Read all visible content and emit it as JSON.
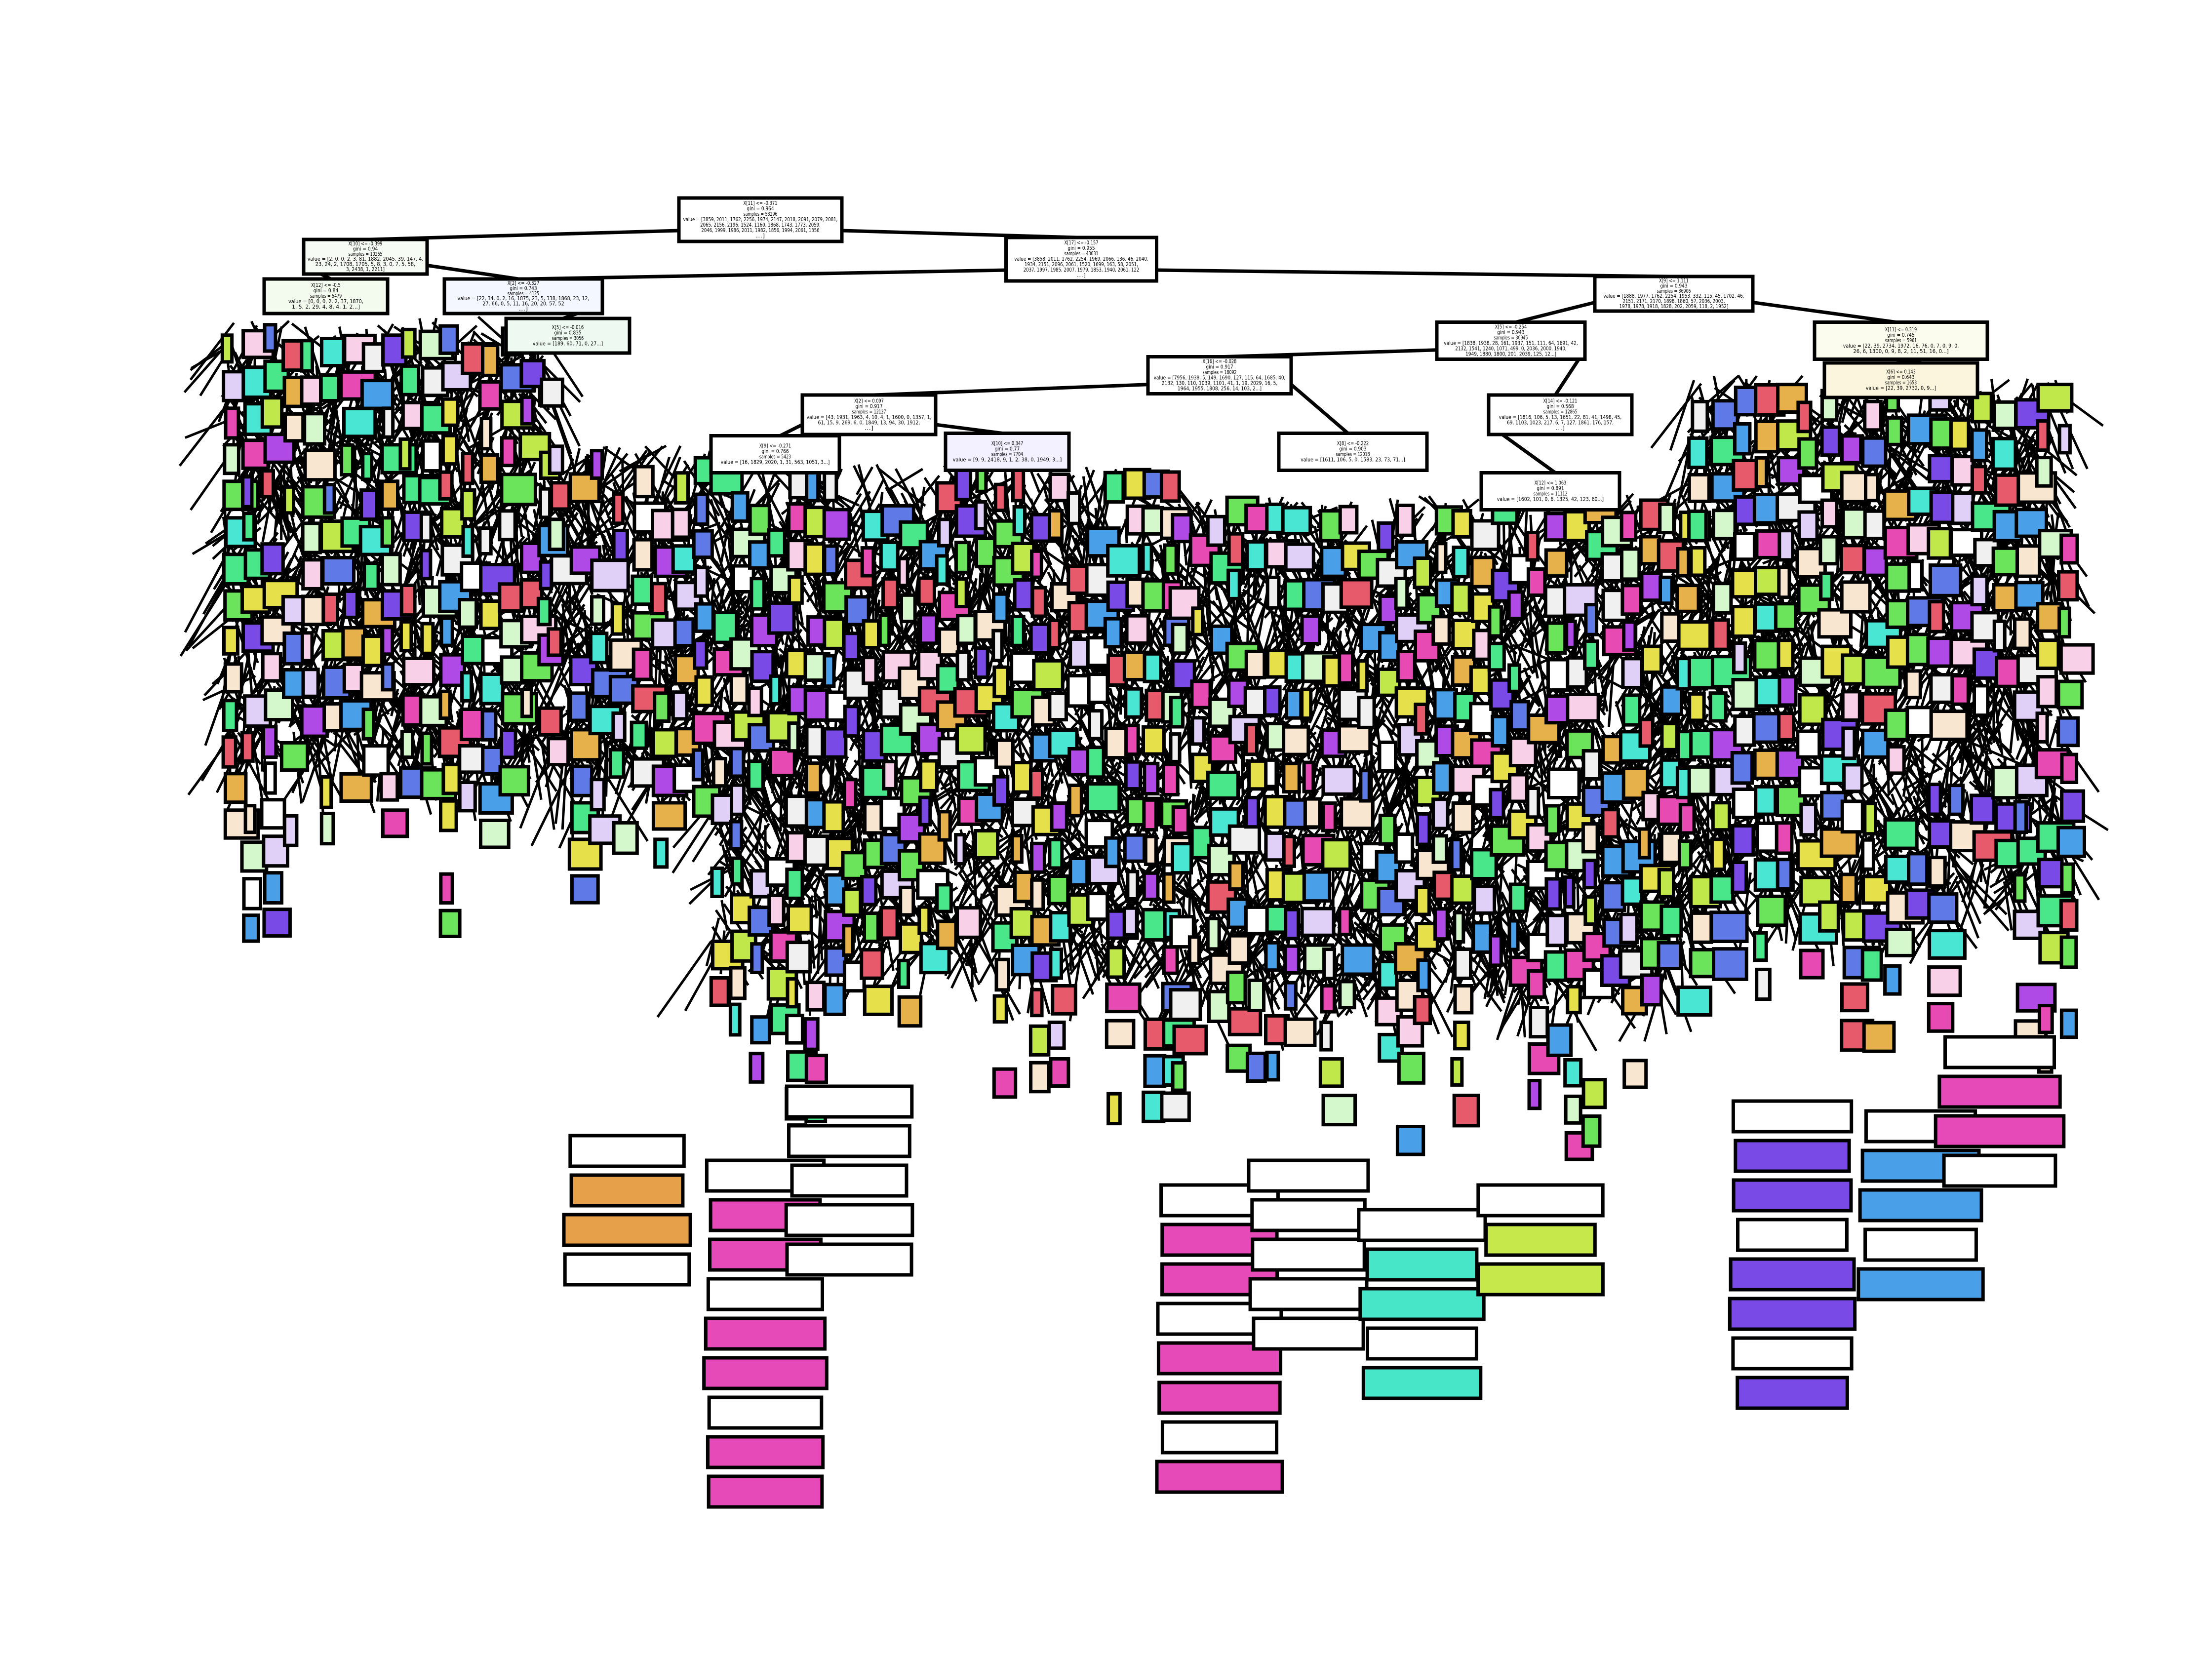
{
  "diagram": {
    "type": "decision-tree",
    "palette": [
      "#6be35a",
      "#d4f7cc",
      "#4aa0e8",
      "#5f7ae6",
      "#e84ab3",
      "#b04ae6",
      "#7a4ae6",
      "#e6b04a",
      "#e6e04a",
      "#4ae6d4",
      "#4ae68a",
      "#f0f0f0",
      "#e65a6b",
      "#ffffff",
      "#c0e84a",
      "#e0d0f8",
      "#f8d0e8",
      "#f8e6d0"
    ],
    "main_nodes": [
      {
        "id": "root",
        "lines": [
          "X[11] <= -0.371",
          "gini = 0.964",
          "samples = 53296",
          "value = [3859, 2011, 1762, 2256, 1974, 2147, 2018, 2091, 2079, 2081,",
          "2065, 2156, 2196, 1524, 1160, 1868, 1743, 1773, 2059,",
          "2046, 1999, 1986, 2011, 1982, 1856, 1994, 2061, 1356",
          "...]"
        ]
      },
      {
        "id": "n1",
        "lines": [
          "X[10] <= -0.399",
          "gini = 0.94",
          "samples = 10265",
          "value = [2, 0, 0, 2, 3, 81, 1882, 2045, 39, 147, 4,",
          "23, 24, 2, 1708, 1705, 5, 8, 3, 0, 7, 5, 58,",
          "3, 2438, 1, 2211]"
        ]
      },
      {
        "id": "n2",
        "lines": [
          "X[17] <= -0.157",
          "gini = 0.955",
          "samples = 43031",
          "value = [3858, 2011, 1762, 2254, 1969, 2066, 136, 46, 2040,",
          "1934, 2151, 2096, 2061, 1520, 1699, 163, 58, 2051,",
          "2037, 1997, 1985, 2007, 1979, 1853, 1940, 2061, 122",
          "...]"
        ]
      },
      {
        "id": "n3",
        "lines": [
          "X[12] <= -0.5",
          "gini = 0.84",
          "samples = 5479",
          "value = [0, 0, 0, 2, 2, 37, 1870,",
          "1, 5, 2, 29, 4, 8, 4, 1, 2...]"
        ]
      },
      {
        "id": "n4",
        "lines": [
          "X[2] <= -0.327",
          "gini = 0.743",
          "samples = 4125",
          "value = [22, 34, 0, 2, 16, 1875, 23, 5, 338, 1868, 23, 12,",
          "27, 66, 0, 5, 11, 16, 20, 20, 57, 52",
          "...]"
        ]
      },
      {
        "id": "n5",
        "lines": [
          "X[9] <= 1.111",
          "gini = 0.943",
          "samples = 36906",
          "value = [1888, 1977, 1762, 2254, 1953, 332, 115, 45, 1702, 46,",
          "2151, 2171, 2170, 1898, 1860, 57, 2036, 2003,",
          "1978, 1978, 1918, 1828, 202, 2059, 118, 2, 1952]"
        ]
      },
      {
        "id": "n6",
        "lines": [
          "X[5] <= -0.254",
          "gini = 0.943",
          "samples = 30945",
          "value = [1838, 1938, 28, 161, 1937, 151, 111, 64, 1691, 42,",
          "2132, 1541, 1240, 1071, 499, 0, 2036, 2000, 1940,",
          "1949, 1880, 1800, 201, 2039, 125, 12...]"
        ]
      },
      {
        "id": "n7",
        "lines": [
          "X[11] <= 0.319",
          "gini = 0.745",
          "samples = 5961",
          "value = [22, 39, 2734, 1972, 16, 76, 0, 7, 0, 9, 0,",
          "26, 6, 1300, 0, 9, 8, 2, 11, 51, 16, 0...]"
        ]
      },
      {
        "id": "n8",
        "lines": [
          "X[16] <= -0.028",
          "gini = 0.917",
          "samples = 18092",
          "value = [7956, 1938, 5, 149, 1690, 127, 115, 64, 1685, 40,",
          "2132, 130, 110, 1039, 1101, 41, 1, 19, 2029, 16, 5,",
          "1964, 1955, 1808, 256, 14, 103, 2...]"
        ]
      },
      {
        "id": "n9",
        "lines": [
          "X[2] <= 0.097",
          "gini = 0.917",
          "samples = 12127",
          "value = [43, 1931, 1963, 4, 10, 4, 1, 1600, 0, 1357, 1,",
          "61, 15, 9, 269, 6, 0, 1849, 13, 94, 30, 1912,",
          "...]"
        ]
      },
      {
        "id": "n10",
        "lines": [
          "X[14] <= -0.121",
          "gini = 0.568",
          "samples = 12865",
          "value = [1816, 106, 5, 13, 1651, 22, 81, 41, 1498, 45,",
          "69, 1103, 1023, 217, 6, 7, 127, 1861, 176, 157,",
          "...]"
        ]
      },
      {
        "id": "n11",
        "lines": [
          "X[9] <= -0.271",
          "gini = 0.766",
          "samples = 5423",
          "value = [16, 1829, 2020, 1, 31, 563, 1051, 3...]"
        ]
      },
      {
        "id": "n12",
        "lines": [
          "X[10] <= 0.347",
          "gini = 0.77",
          "samples = 7704",
          "value = [9, 9, 2418, 9, 1, 2, 38, 0, 1949, 3...]"
        ]
      },
      {
        "id": "n13",
        "lines": [
          "X[8] <= -0.222",
          "gini = 0.903",
          "samples = 12018",
          "value = [1611, 106, 5, 0, 1583, 23, 73, 71...]"
        ]
      },
      {
        "id": "n14",
        "lines": [
          "X[12] <= 1.063",
          "gini = 0.891",
          "samples = 11112",
          "value = [1602, 101, 0, 6, 1325, 42, 123, 60...]"
        ]
      },
      {
        "id": "n15",
        "lines": [
          "X[5] <= -0.016",
          "gini = 0.835",
          "samples = 3056",
          "value = [189, 60, 71, 0, 27...]"
        ]
      },
      {
        "id": "n16",
        "lines": [
          "X[6] <= 0.143",
          "gini = 0.643",
          "samples = 1653",
          "value = [22, 39, 2732, 0, 9...]"
        ]
      }
    ]
  }
}
